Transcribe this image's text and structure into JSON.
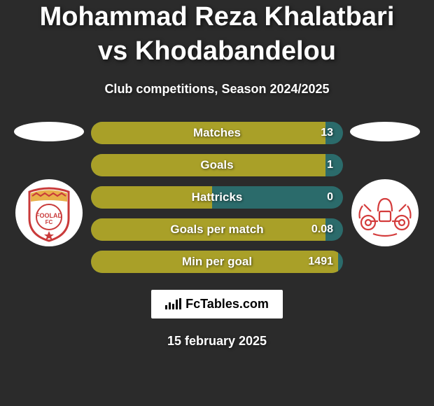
{
  "title": "Mohammad Reza Khalatbari vs Khodabandelou",
  "subtitle": "Club competitions, Season 2024/2025",
  "date": "15 february 2025",
  "branding_text": "FcTables.com",
  "background_color": "#2b2b2b",
  "ellipse_color": "#ffffff",
  "bar_empty_color": "#2b6b6b",
  "bar_fill_color": "#a9a028",
  "stats": [
    {
      "label": "Matches",
      "value": "13",
      "fill_pct": 93
    },
    {
      "label": "Goals",
      "value": "1",
      "fill_pct": 93
    },
    {
      "label": "Hattricks",
      "value": "0",
      "fill_pct": 48
    },
    {
      "label": "Goals per match",
      "value": "0.08",
      "fill_pct": 93
    },
    {
      "label": "Min per goal",
      "value": "1491",
      "fill_pct": 98
    }
  ],
  "left_crest": {
    "name": "foolad-fc",
    "colors": {
      "circle": "#ffffff",
      "shield_border": "#c93a3a",
      "shield_fill": "#ffffff",
      "band": "#e8b04a",
      "text": "#c93a3a",
      "star": "#c93a3a"
    }
  },
  "right_crest": {
    "name": "tractor",
    "colors": {
      "circle": "#ffffff",
      "stroke": "#d43c3c"
    }
  }
}
